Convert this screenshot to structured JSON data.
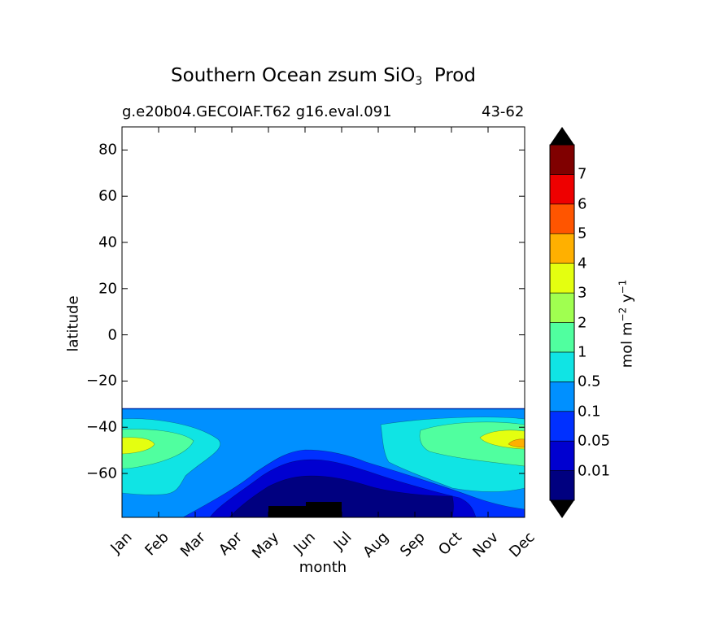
{
  "chart_data": {
    "type": "heatmap",
    "title_main": "Southern Ocean zsum SiO",
    "title_sub": "3",
    "title_end": "Prod",
    "subtitle_left": "g.e20b04.GECOIAF.T62 g16.eval.091",
    "subtitle_right": "43-62",
    "xlabel": "month",
    "ylabel": "latitude",
    "x_categories": [
      "Jan",
      "Feb",
      "Mar",
      "Apr",
      "May",
      "Jun",
      "Jul",
      "Aug",
      "Sep",
      "Oct",
      "Nov",
      "Dec"
    ],
    "y_ticks": [
      "80",
      "60",
      "40",
      "20",
      "0",
      "−20",
      "−40",
      "−60"
    ],
    "ylim": [
      -79,
      90
    ],
    "colorbar": {
      "label_main": "mol m",
      "label_exp1": "−2",
      "label_mid": " y",
      "label_exp2": "−1",
      "tick_labels": [
        "7",
        "6",
        "5",
        "4",
        "3",
        "2",
        "1",
        "0.5",
        "0.1",
        "0.05",
        "0.01"
      ],
      "levels": [
        0.01,
        0.05,
        0.1,
        0.5,
        1,
        2,
        3,
        4,
        5,
        6,
        7
      ],
      "colors": [
        "#000080",
        "#0000d0",
        "#0030ff",
        "#0090ff",
        "#10e4e4",
        "#50ff9f",
        "#a0ff50",
        "#e4ff10",
        "#ffb000",
        "#ff5500",
        "#ee0000",
        "#800000"
      ],
      "extend_under": "#000000",
      "extend_over": "#000000"
    },
    "data_top_latitude": -32,
    "regions": [
      {
        "level_index": 3,
        "description": "light blue background south of 32S"
      },
      {
        "level_index": 4,
        "description": "cyan band near 45S in Jan-Mar and Sep-Dec"
      },
      {
        "level_index": 5,
        "description": "green core at 47S in Jan and Nov-Dec"
      },
      {
        "level_index": 7,
        "description": "yellow core at 47S in Jan and Dec"
      },
      {
        "level_index": 8,
        "description": "orange core at 47S in December"
      },
      {
        "level_index": 2,
        "description": "blue winter region south of 55S"
      },
      {
        "level_index": 1,
        "description": "darker blue winter core"
      },
      {
        "level_index": 0,
        "description": "navy winter core near Antarctic coast"
      }
    ]
  }
}
